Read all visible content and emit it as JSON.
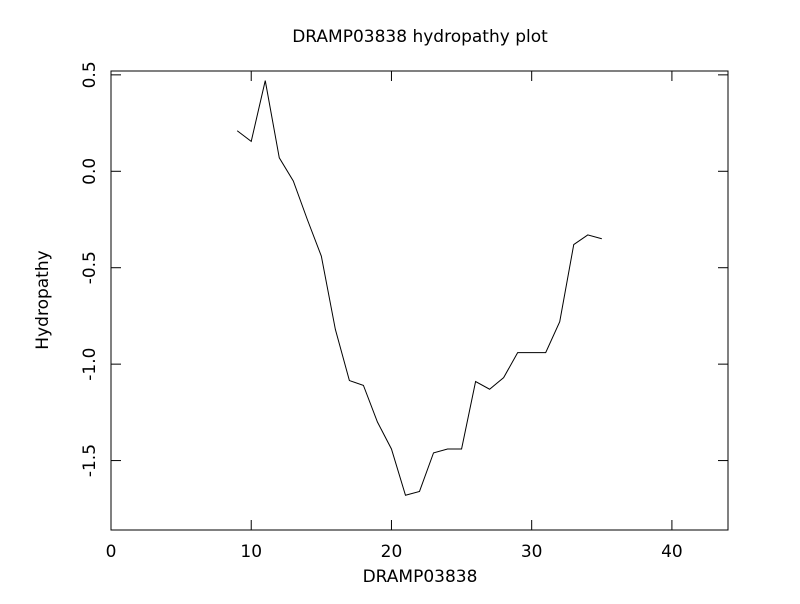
{
  "chart_data": {
    "type": "line",
    "title": "DRAMP03838 hydropathy plot",
    "x_label": "DRAMP03838",
    "y_label": "Hydropathy",
    "x": [
      9,
      10,
      11,
      12,
      13,
      14,
      15,
      16,
      17,
      18,
      19,
      20,
      21,
      22,
      23,
      24,
      25,
      26,
      27,
      28,
      29,
      30,
      31,
      32,
      33,
      34,
      35
    ],
    "series": [
      {
        "color": "#000000",
        "values": [
          0.21,
          0.155,
          0.47,
          0.07,
          -0.05,
          -0.25,
          -0.44,
          -0.82,
          -1.085,
          -1.11,
          -1.3,
          -1.44,
          -1.68,
          -1.66,
          -1.46,
          -1.44,
          -1.44,
          -1.09,
          -1.13,
          -1.07,
          -0.94,
          -0.94,
          -0.94,
          -0.78,
          -0.38,
          -0.33,
          -0.35
        ]
      }
    ],
    "xlim": [
      0,
      44
    ],
    "ylim": [
      -1.86,
      0.52
    ],
    "xticks": [
      0,
      10,
      20,
      30,
      40
    ],
    "yticks": [
      0.5,
      {
        "value": 0,
        "label": "0.0"
      },
      -0.5,
      {
        "value": -1,
        "label": "-1.0"
      },
      -1.5
    ],
    "grid": false
  }
}
